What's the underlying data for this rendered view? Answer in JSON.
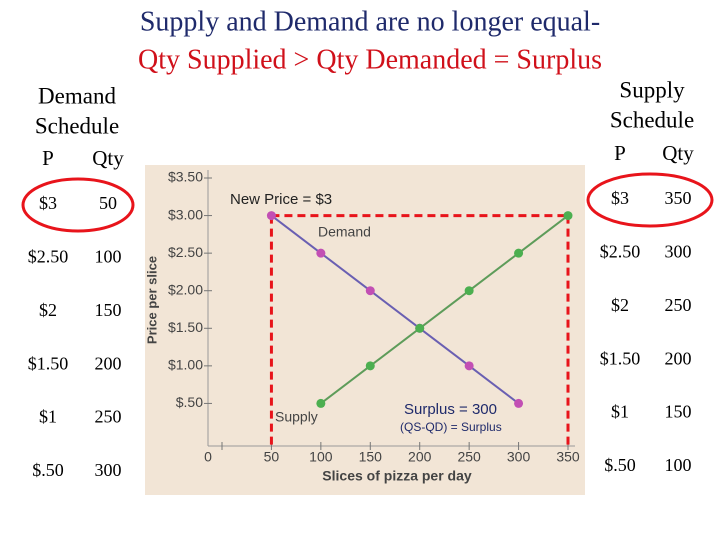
{
  "title": [
    "Supply and Demand are no longer equal-",
    "Qty Supplied > Qty Demanded = Surplus"
  ],
  "demand_schedule": {
    "title": [
      "Demand",
      "Schedule"
    ],
    "columns": [
      "P",
      "Qty"
    ],
    "rows": [
      [
        "$3",
        "50"
      ],
      [
        "$2.50",
        "100"
      ],
      [
        "$2",
        "150"
      ],
      [
        "$1.50",
        "200"
      ],
      [
        "$1",
        "250"
      ],
      [
        "$.50",
        "300"
      ]
    ]
  },
  "supply_schedule": {
    "title": [
      "Supply",
      "Schedule"
    ],
    "columns": [
      "P",
      "Qty"
    ],
    "rows": [
      [
        "$3",
        "350"
      ],
      [
        "$2.50",
        "300"
      ],
      [
        "$2",
        "250"
      ],
      [
        "$1.50",
        "200"
      ],
      [
        "$1",
        "150"
      ],
      [
        "$.50",
        "100"
      ]
    ]
  },
  "chart_data": {
    "type": "line",
    "x_label": "Slices of pizza per day",
    "y_label": "Price per slice",
    "x": [
      50,
      100,
      150,
      200,
      250,
      300,
      350
    ],
    "series": [
      {
        "name": "Demand",
        "color": "#6a5fb2",
        "marker_color": "#c24fb4",
        "values": [
          3,
          2.5,
          2,
          1.5,
          1,
          0.5,
          null
        ]
      },
      {
        "name": "Supply",
        "color": "#5e9c5a",
        "marker_color": "#4caf50",
        "values": [
          null,
          0.5,
          1,
          1.5,
          2,
          2.5,
          3
        ]
      }
    ],
    "xlim": [
      0,
      350
    ],
    "ylim": [
      0,
      3.5
    ],
    "xticks": [
      0,
      50,
      100,
      150,
      200,
      250,
      300,
      350
    ],
    "yticks": [
      {
        "value": 0.5,
        "label": "$.50"
      },
      {
        "value": 1,
        "label": "$1.00"
      },
      {
        "value": 1.5,
        "label": "$1.50"
      },
      {
        "value": 2,
        "label": "$2.00"
      },
      {
        "value": 2.5,
        "label": "$2.50"
      },
      {
        "value": 3,
        "label": "$3.00"
      },
      {
        "value": 3.5,
        "label": "$3.50"
      }
    ],
    "annotations": [
      "New Price = $3",
      "Surplus = 300",
      "(QS-QD) = Surplus"
    ]
  }
}
